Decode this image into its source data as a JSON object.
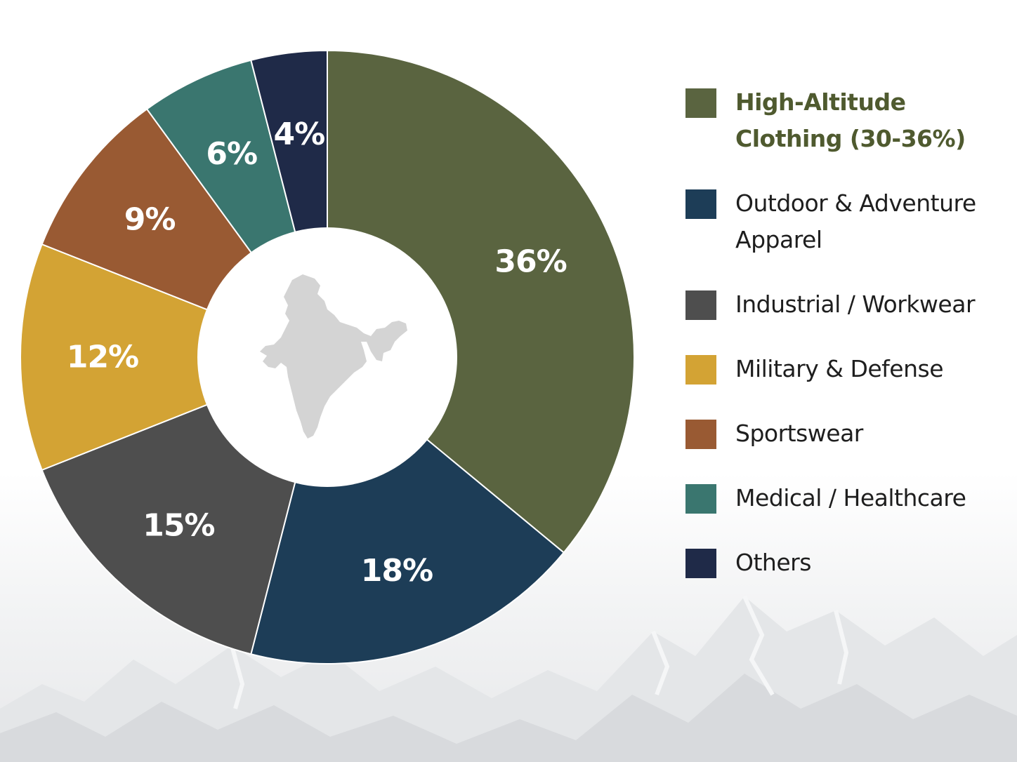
{
  "chart_data": {
    "type": "pie",
    "title": "",
    "unit": "%",
    "categories": [
      "High-Altitude Clothing (30-36%)",
      "Outdoor & Adventure Apparel",
      "Industrial / Workwear",
      "Military & Defense",
      "Sportswear",
      "Medical / Healthcare",
      "Others"
    ],
    "values": [
      36,
      18,
      15,
      12,
      9,
      6,
      4
    ],
    "labels": [
      "36%",
      "18%",
      "15%",
      "12%",
      "9%",
      "6%",
      "4%"
    ],
    "colors": [
      "#5a6440",
      "#1d3d57",
      "#4e4e4e",
      "#d3a334",
      "#995a33",
      "#3a766f",
      "#1f2a48"
    ],
    "donut": true,
    "center_icon": "india-map-icon",
    "legend_position": "right",
    "legend_highlight_index": 0,
    "legend_highlight_color": "#4f5a2f"
  },
  "background_icon": "mountain-range-icon"
}
